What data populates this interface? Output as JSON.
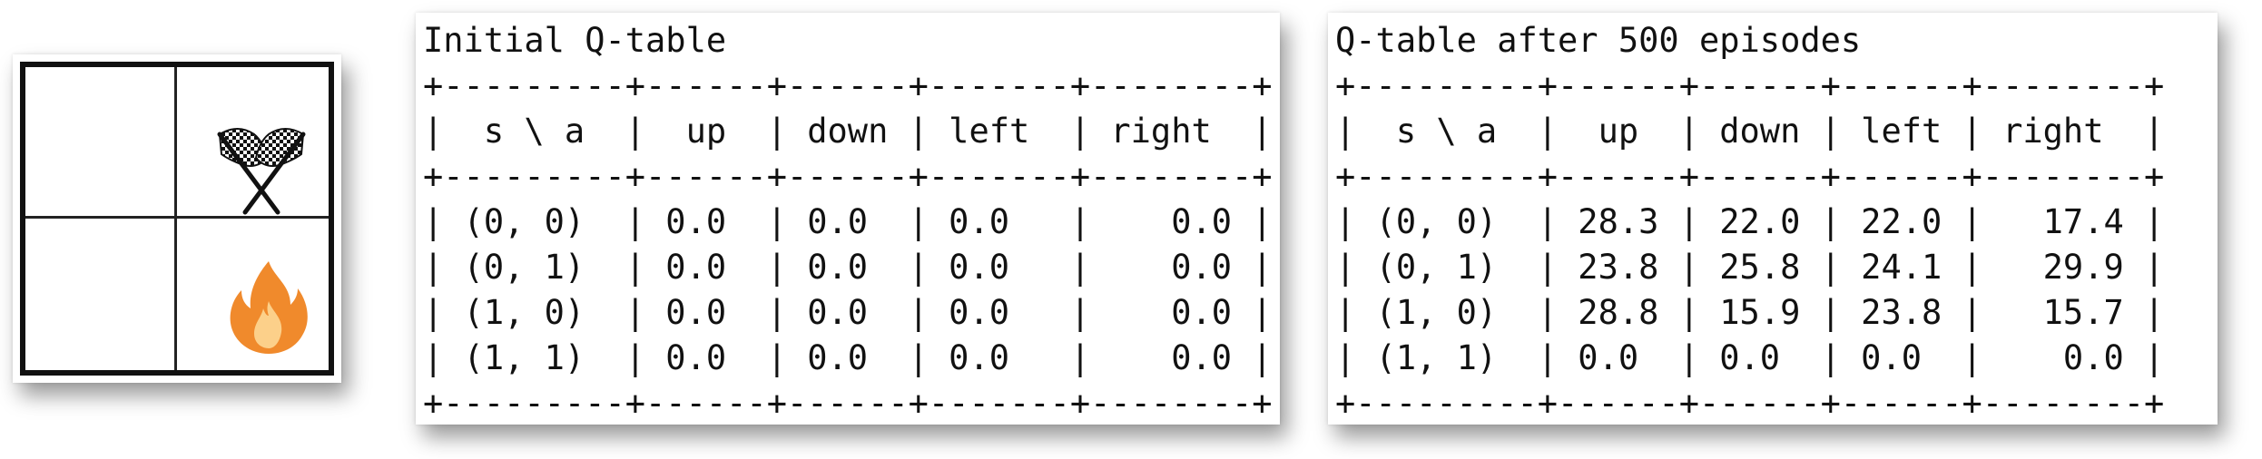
{
  "grid": {
    "cells": [
      {
        "row": 0,
        "col": 0,
        "icon": ""
      },
      {
        "row": 0,
        "col": 1,
        "icon": "checkered-flags-icon"
      },
      {
        "row": 1,
        "col": 0,
        "icon": ""
      },
      {
        "row": 1,
        "col": 1,
        "icon": "fire-icon"
      }
    ]
  },
  "tables": [
    {
      "title": "Initial Q-table",
      "columns": [
        "s \\ a",
        "up",
        "down",
        "left",
        "right"
      ],
      "rows": [
        [
          "(0, 0)",
          "0.0",
          "0.0",
          "0.0",
          "0.0"
        ],
        [
          "(0, 1)",
          "0.0",
          "0.0",
          "0.0",
          "0.0"
        ],
        [
          "(1, 0)",
          "0.0",
          "0.0",
          "0.0",
          "0.0"
        ],
        [
          "(1, 1)",
          "0.0",
          "0.0",
          "0.0",
          "0.0"
        ]
      ]
    },
    {
      "title": "Q-table after 500 episodes",
      "columns": [
        "s \\ a",
        "up",
        "down",
        "left",
        "right"
      ],
      "rows": [
        [
          "(0, 0)",
          "28.3",
          "22.0",
          "22.0",
          "17.4"
        ],
        [
          "(0, 1)",
          "23.8",
          "25.8",
          "24.1",
          "29.9"
        ],
        [
          "(1, 0)",
          "28.8",
          "15.9",
          "23.8",
          "15.7"
        ],
        [
          "(1, 1)",
          "0.0",
          "0.0",
          "0.0",
          "0.0"
        ]
      ]
    }
  ],
  "colors": {
    "fire_outer": "#f08a2c",
    "fire_inner": "#fcd08a",
    "flag_dark": "#111111"
  }
}
